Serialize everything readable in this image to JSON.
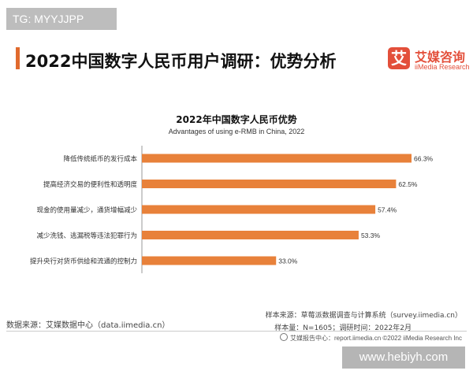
{
  "watermark_top": "TG: MYYJJPP",
  "page_title": "2022中国数字人民币用户调研：优势分析",
  "logo": {
    "mark": "艾",
    "cn": "艾媒咨询",
    "en": "iiMedia Research"
  },
  "chart_data": {
    "type": "bar",
    "orientation": "horizontal",
    "title": "2022年中国数字人民币优势",
    "subtitle": "Advantages of using e-RMB in China, 2022",
    "categories": [
      "降低传统纸币的发行成本",
      "提高经济交易的便利性和透明度",
      "现金的使用量减少，通货增幅减少",
      "减少洗钱、逃漏税等违法犯罪行为",
      "提升央行对货币供给和流通的控制力"
    ],
    "values": [
      66.3,
      62.5,
      57.4,
      53.3,
      33.0
    ],
    "value_labels": [
      "66.3%",
      "62.5%",
      "57.4%",
      "53.3%",
      "33.0%"
    ],
    "xlim": [
      0,
      70
    ],
    "bar_color": "#e8813a",
    "grid": false
  },
  "source_left": "数据来源：艾媒数据中心（data.iimedia.cn）",
  "source_right": "样本来源：草莓派数据调查与计算系统（survey.iimedia.cn）",
  "sample_right": "样本量：N=1605；调研时间：2022年2月",
  "footer": "艾媒报告中心：report.iimedia.cn   ©2022 iiMedia Research Inc",
  "watermark_bottom": "www.hebiyh.com"
}
